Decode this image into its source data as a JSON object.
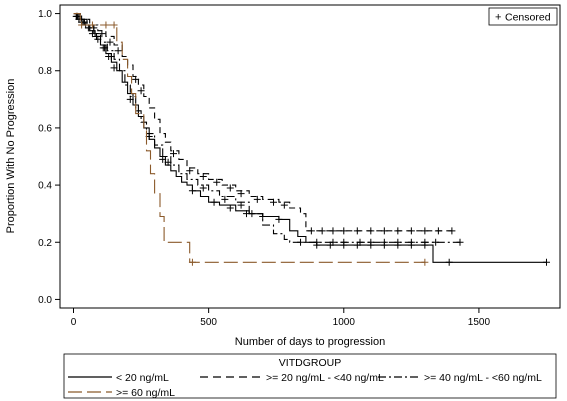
{
  "chart_data": {
    "type": "line",
    "subtype": "kaplan-meier step",
    "xlabel": "Number of days to progression",
    "ylabel": "Proportion With No Progression",
    "xlim": [
      -50,
      1800
    ],
    "ylim": [
      -0.03,
      1.03
    ],
    "xticks": [
      0,
      500,
      1000,
      1500
    ],
    "yticks": [
      0.0,
      0.2,
      0.4,
      0.6,
      0.8,
      1.0
    ],
    "ytick_labels": [
      "0.0",
      "0.2",
      "0.4",
      "0.6",
      "0.8",
      "1.0"
    ],
    "grid": false,
    "censor_legend": {
      "symbol": "+",
      "label": "Censored",
      "placement": "top-right"
    },
    "legend": {
      "title": "VITDGROUP",
      "placement": "bottom-outside",
      "entries": [
        "< 20 ng/mL",
        ">= 20 ng/mL - <40 ng/mL",
        ">= 40 ng/mL - <60 ng/mL",
        ">= 60 ng/mL"
      ]
    },
    "series": [
      {
        "name": "< 20 ng/mL",
        "color": "#000000",
        "dash": "solid",
        "points": [
          [
            0,
            1.0
          ],
          [
            20,
            0.98
          ],
          [
            40,
            0.96
          ],
          [
            60,
            0.94
          ],
          [
            80,
            0.92
          ],
          [
            100,
            0.89
          ],
          [
            120,
            0.86
          ],
          [
            140,
            0.83
          ],
          [
            160,
            0.8
          ],
          [
            180,
            0.76
          ],
          [
            200,
            0.72
          ],
          [
            220,
            0.68
          ],
          [
            240,
            0.64
          ],
          [
            260,
            0.6
          ],
          [
            280,
            0.56
          ],
          [
            300,
            0.53
          ],
          [
            320,
            0.5
          ],
          [
            340,
            0.47
          ],
          [
            360,
            0.45
          ],
          [
            380,
            0.43
          ],
          [
            400,
            0.41
          ],
          [
            420,
            0.4
          ],
          [
            440,
            0.38
          ],
          [
            470,
            0.36
          ],
          [
            500,
            0.34
          ],
          [
            540,
            0.33
          ],
          [
            600,
            0.31
          ],
          [
            650,
            0.3
          ],
          [
            700,
            0.29
          ],
          [
            760,
            0.28
          ],
          [
            800,
            0.24
          ],
          [
            830,
            0.22
          ],
          [
            860,
            0.2
          ],
          [
            900,
            0.19
          ],
          [
            1320,
            0.19
          ],
          [
            1330,
            0.13
          ],
          [
            1750,
            0.13
          ]
        ],
        "censored": [
          [
            10,
            0.99
          ],
          [
            20,
            0.98
          ],
          [
            30,
            0.97
          ],
          [
            45,
            0.96
          ],
          [
            55,
            0.95
          ],
          [
            70,
            0.93
          ],
          [
            90,
            0.91
          ],
          [
            110,
            0.88
          ],
          [
            130,
            0.85
          ],
          [
            150,
            0.81
          ],
          [
            210,
            0.7
          ],
          [
            330,
            0.49
          ],
          [
            440,
            0.38
          ],
          [
            520,
            0.34
          ],
          [
            580,
            0.32
          ],
          [
            640,
            0.3
          ],
          [
            700,
            0.29
          ],
          [
            760,
            0.28
          ],
          [
            900,
            0.19
          ],
          [
            950,
            0.19
          ],
          [
            1000,
            0.19
          ],
          [
            1050,
            0.19
          ],
          [
            1100,
            0.19
          ],
          [
            1150,
            0.19
          ],
          [
            1200,
            0.19
          ],
          [
            1250,
            0.19
          ],
          [
            1300,
            0.19
          ],
          [
            1390,
            0.13
          ],
          [
            1750,
            0.13
          ]
        ]
      },
      {
        "name": ">= 20 ng/mL - <40 ng/mL",
        "color": "#000000",
        "dash": "6,4",
        "points": [
          [
            0,
            1.0
          ],
          [
            30,
            0.98
          ],
          [
            60,
            0.96
          ],
          [
            90,
            0.94
          ],
          [
            120,
            0.92
          ],
          [
            150,
            0.89
          ],
          [
            180,
            0.85
          ],
          [
            200,
            0.82
          ],
          [
            220,
            0.78
          ],
          [
            240,
            0.75
          ],
          [
            260,
            0.71
          ],
          [
            280,
            0.67
          ],
          [
            300,
            0.63
          ],
          [
            320,
            0.58
          ],
          [
            340,
            0.55
          ],
          [
            360,
            0.52
          ],
          [
            390,
            0.49
          ],
          [
            420,
            0.46
          ],
          [
            460,
            0.44
          ],
          [
            500,
            0.42
          ],
          [
            550,
            0.4
          ],
          [
            600,
            0.38
          ],
          [
            650,
            0.36
          ],
          [
            700,
            0.35
          ],
          [
            760,
            0.34
          ],
          [
            800,
            0.32
          ],
          [
            840,
            0.3
          ],
          [
            860,
            0.24
          ],
          [
            1400,
            0.24
          ]
        ],
        "censored": [
          [
            15,
            0.99
          ],
          [
            40,
            0.97
          ],
          [
            75,
            0.95
          ],
          [
            105,
            0.93
          ],
          [
            135,
            0.9
          ],
          [
            165,
            0.87
          ],
          [
            230,
            0.77
          ],
          [
            250,
            0.73
          ],
          [
            370,
            0.51
          ],
          [
            430,
            0.45
          ],
          [
            480,
            0.43
          ],
          [
            530,
            0.41
          ],
          [
            580,
            0.39
          ],
          [
            620,
            0.37
          ],
          [
            680,
            0.35
          ],
          [
            740,
            0.34
          ],
          [
            780,
            0.33
          ],
          [
            880,
            0.24
          ],
          [
            920,
            0.24
          ],
          [
            960,
            0.24
          ],
          [
            1000,
            0.24
          ],
          [
            1050,
            0.24
          ],
          [
            1100,
            0.24
          ],
          [
            1150,
            0.24
          ],
          [
            1200,
            0.24
          ],
          [
            1250,
            0.24
          ],
          [
            1300,
            0.24
          ],
          [
            1350,
            0.24
          ],
          [
            1400,
            0.24
          ]
        ]
      },
      {
        "name": ">= 40 ng/mL - <60 ng/mL",
        "color": "#000000",
        "dash": "8,3,2,3",
        "points": [
          [
            0,
            1.0
          ],
          [
            25,
            0.98
          ],
          [
            50,
            0.96
          ],
          [
            75,
            0.93
          ],
          [
            100,
            0.9
          ],
          [
            125,
            0.87
          ],
          [
            150,
            0.84
          ],
          [
            170,
            0.8
          ],
          [
            190,
            0.75
          ],
          [
            210,
            0.71
          ],
          [
            230,
            0.66
          ],
          [
            250,
            0.62
          ],
          [
            270,
            0.58
          ],
          [
            300,
            0.54
          ],
          [
            330,
            0.5
          ],
          [
            360,
            0.47
          ],
          [
            390,
            0.44
          ],
          [
            420,
            0.42
          ],
          [
            460,
            0.4
          ],
          [
            500,
            0.38
          ],
          [
            540,
            0.36
          ],
          [
            600,
            0.34
          ],
          [
            650,
            0.3
          ],
          [
            700,
            0.26
          ],
          [
            740,
            0.23
          ],
          [
            780,
            0.21
          ],
          [
            800,
            0.2
          ],
          [
            1430,
            0.2
          ]
        ],
        "censored": [
          [
            12,
            0.99
          ],
          [
            35,
            0.97
          ],
          [
            60,
            0.95
          ],
          [
            85,
            0.92
          ],
          [
            115,
            0.88
          ],
          [
            140,
            0.85
          ],
          [
            280,
            0.57
          ],
          [
            350,
            0.48
          ],
          [
            480,
            0.39
          ],
          [
            560,
            0.35
          ],
          [
            620,
            0.33
          ],
          [
            660,
            0.3
          ],
          [
            840,
            0.2
          ],
          [
            900,
            0.2
          ],
          [
            960,
            0.2
          ],
          [
            1000,
            0.2
          ],
          [
            1060,
            0.2
          ],
          [
            1100,
            0.2
          ],
          [
            1150,
            0.2
          ],
          [
            1200,
            0.2
          ],
          [
            1250,
            0.2
          ],
          [
            1300,
            0.2
          ],
          [
            1340,
            0.2
          ],
          [
            1430,
            0.2
          ]
        ]
      },
      {
        "name": ">= 60 ng/mL",
        "color": "#8B5A2B",
        "dash": "14,5",
        "points": [
          [
            0,
            1.0
          ],
          [
            25,
            0.96
          ],
          [
            80,
            0.96
          ],
          [
            150,
            0.96
          ],
          [
            160,
            0.9
          ],
          [
            180,
            0.84
          ],
          [
            200,
            0.78
          ],
          [
            215,
            0.72
          ],
          [
            230,
            0.65
          ],
          [
            260,
            0.59
          ],
          [
            270,
            0.52
          ],
          [
            285,
            0.44
          ],
          [
            300,
            0.37
          ],
          [
            320,
            0.29
          ],
          [
            335,
            0.2
          ],
          [
            420,
            0.2
          ],
          [
            430,
            0.13
          ],
          [
            1300,
            0.13
          ]
        ],
        "censored": [
          [
            30,
            0.96
          ],
          [
            70,
            0.96
          ],
          [
            120,
            0.96
          ],
          [
            150,
            0.96
          ],
          [
            440,
            0.13
          ],
          [
            1300,
            0.13
          ]
        ]
      }
    ]
  }
}
